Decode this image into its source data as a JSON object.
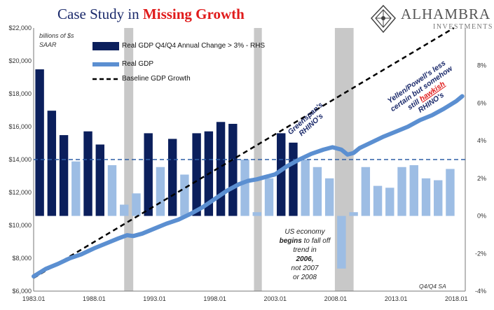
{
  "title": {
    "part1": "Case Study in ",
    "part2": "Missing Growth"
  },
  "logo": {
    "name": "ALHAMBRA",
    "sub": "INVESTMENTS"
  },
  "unit_line1": "billions of $s",
  "unit_line2": "SAAR",
  "corner_note": "Q4/Q4 SA",
  "colors": {
    "dark_bar": "#0b1f5c",
    "light_bar": "#9dbde4",
    "line": "#5b8fd1",
    "recession": "#c8c8c8",
    "baseline": "#000000",
    "threshold": "#2f5fa5"
  },
  "annotations": {
    "greenspan": "Greenspan's\nRHINO's",
    "yellen_1": "Yellen/Powell's less",
    "yellen_2": "certain but somehow",
    "yellen_3_a": "still ",
    "yellen_3_b": "hawkish",
    "yellen_4": "RHINO's"
  },
  "note": {
    "l1": "US economy",
    "l2_b": "begins",
    "l2": " to fall off",
    "l3": "trend in",
    "l4": "2006,",
    "l5": "not 2007",
    "l6": "or 2008"
  },
  "chart_data": {
    "type": "bar+line",
    "legend": [
      {
        "label": "Real GDP Q4/Q4 Annual Change > 3% - RHS",
        "kind": "bar"
      },
      {
        "label": "Real GDP",
        "kind": "line"
      },
      {
        "label": "Baseline GDP Growth",
        "kind": "dashed-line"
      }
    ],
    "left_axis": {
      "ticks": [
        "$6,000",
        "$8,000",
        "$10,000",
        "$12,000",
        "$14,000",
        "$16,000",
        "$18,000",
        "$20,000",
        "$22,000"
      ],
      "range": [
        6000,
        22000
      ]
    },
    "right_axis": {
      "ticks": [
        "-4%",
        "-2%",
        "0%",
        "2%",
        "4%",
        "6%",
        "8%"
      ],
      "range": [
        -4,
        10
      ]
    },
    "x_axis": {
      "ticks": [
        "1983.01",
        "1988.01",
        "1993.01",
        "1998.01",
        "2003.01",
        "2008.01",
        "2013.01",
        "2018.01"
      ],
      "range": [
        1983.0,
        2018.75
      ]
    },
    "recessions": [
      [
        1990.5,
        1991.25
      ],
      [
        2001.25,
        2001.9
      ],
      [
        2007.95,
        2009.5
      ]
    ],
    "threshold_pct": 3,
    "annual_change": {
      "years": [
        1983,
        1984,
        1985,
        1986,
        1987,
        1988,
        1989,
        1990,
        1991,
        1992,
        1993,
        1994,
        1995,
        1996,
        1997,
        1998,
        1999,
        2000,
        2001,
        2002,
        2003,
        2004,
        2005,
        2006,
        2007,
        2008,
        2009,
        2010,
        2011,
        2012,
        2013,
        2014,
        2015,
        2016,
        2017
      ],
      "values": [
        7.8,
        5.6,
        4.3,
        2.9,
        4.5,
        3.8,
        2.7,
        0.6,
        1.2,
        4.4,
        2.6,
        4.1,
        2.2,
        4.4,
        4.5,
        5.0,
        4.9,
        3.0,
        0.2,
        2.0,
        4.4,
        3.9,
        3.0,
        2.6,
        2.0,
        -2.8,
        0.2,
        2.6,
        1.6,
        1.5,
        2.6,
        2.7,
        2.0,
        1.9,
        2.5
      ]
    },
    "real_gdp": {
      "x": [
        1983.0,
        1984.0,
        1985.0,
        1986.0,
        1987.0,
        1988.0,
        1989.0,
        1990.0,
        1990.75,
        1991.25,
        1992.0,
        1993.0,
        1994.0,
        1995.0,
        1996.0,
        1997.0,
        1998.0,
        1999.0,
        2000.0,
        2000.75,
        2001.5,
        2002.0,
        2003.0,
        2004.0,
        2005.0,
        2006.0,
        2007.0,
        2007.75,
        2008.5,
        2009.0,
        2009.5,
        2010.0,
        2011.0,
        2012.0,
        2013.0,
        2014.0,
        2015.0,
        2016.0,
        2017.0,
        2018.0,
        2018.5
      ],
      "y": [
        6900,
        7350,
        7650,
        8000,
        8250,
        8600,
        8900,
        9200,
        9400,
        9350,
        9500,
        9800,
        10100,
        10350,
        10700,
        11100,
        11600,
        12100,
        12500,
        12700,
        12800,
        12900,
        13100,
        13600,
        14000,
        14350,
        14600,
        14750,
        14600,
        14300,
        14400,
        14700,
        15050,
        15400,
        15700,
        16000,
        16400,
        16700,
        17100,
        17550,
        17850
      ]
    },
    "baseline": {
      "x": [
        1983.0,
        2017.8
      ],
      "y": [
        6800,
        22000
      ]
    }
  }
}
